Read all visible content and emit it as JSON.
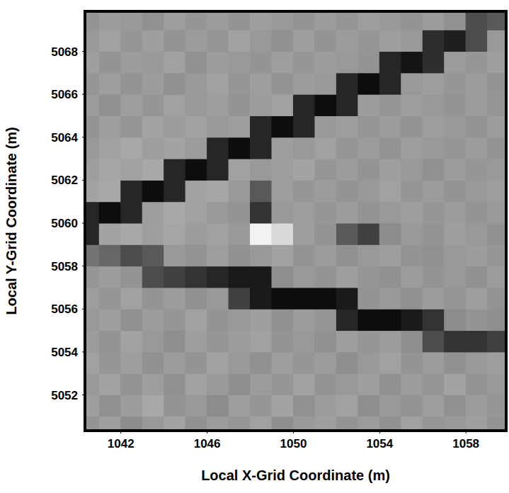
{
  "chart_data": {
    "type": "heatmap",
    "x_label": "Local X-Grid Coordinate (m)",
    "y_label": "Local Y-Grid Coordinate (m)",
    "xlim": [
      1040.4,
      1059.8
    ],
    "ylim": [
      5050.4,
      5069.8
    ],
    "xticks": [
      1042,
      1046,
      1050,
      1054,
      1058
    ],
    "yticks": [
      5052,
      5054,
      5056,
      5058,
      5060,
      5062,
      5064,
      5066,
      5068
    ],
    "zlim": [
      0,
      100
    ],
    "cells": {
      "x": [
        1040.5,
        1041.5,
        1042.5,
        1043.5,
        1044.5,
        1045.5,
        1046.5,
        1047.5,
        1048.5,
        1049.5,
        1050.5,
        1051.5,
        1052.5,
        1053.5,
        1054.5,
        1055.5,
        1056.5,
        1057.5,
        1058.5,
        1059.5
      ],
      "y": [
        5050.5,
        5051.5,
        5052.5,
        5053.5,
        5054.5,
        5055.5,
        5056.5,
        5057.5,
        5058.5,
        5059.5,
        5060.5,
        5061.5,
        5062.5,
        5063.5,
        5064.5,
        5065.5,
        5066.5,
        5067.5,
        5068.5,
        5069.5
      ],
      "z": [
        [
          58,
          62,
          55,
          60,
          64,
          57,
          61,
          59,
          63,
          56,
          60,
          62,
          58,
          61,
          57,
          63,
          59,
          60,
          62,
          58
        ],
        [
          62,
          57,
          61,
          66,
          58,
          60,
          55,
          62,
          59,
          64,
          57,
          61,
          63,
          56,
          60,
          58,
          62,
          57,
          61,
          59
        ],
        [
          60,
          64,
          58,
          62,
          57,
          63,
          60,
          56,
          61,
          59,
          63,
          58,
          60,
          62,
          57,
          61,
          59,
          64,
          58,
          60
        ],
        [
          63,
          59,
          62,
          57,
          61,
          58,
          64,
          60,
          57,
          62,
          59,
          61,
          56,
          60,
          63,
          58,
          61,
          57,
          60,
          62
        ],
        [
          61,
          58,
          64,
          60,
          56,
          62,
          59,
          61,
          63,
          58,
          60,
          57,
          62,
          59,
          61,
          56,
          30,
          20,
          20,
          25
        ],
        [
          60,
          62,
          57,
          61,
          59,
          63,
          58,
          60,
          62,
          57,
          61,
          59,
          15,
          5,
          5,
          10,
          20,
          55,
          58,
          56
        ],
        [
          62,
          59,
          63,
          58,
          61,
          57,
          60,
          25,
          10,
          5,
          5,
          5,
          10,
          58,
          60,
          57,
          61,
          59,
          62,
          58
        ],
        [
          59,
          61,
          58,
          30,
          25,
          20,
          15,
          10,
          10,
          56,
          60,
          58,
          62,
          59,
          57,
          61,
          58,
          60,
          57,
          61
        ],
        [
          45,
          40,
          30,
          35,
          60,
          58,
          62,
          57,
          60,
          63,
          58,
          61,
          57,
          60,
          62,
          58,
          57,
          60,
          61,
          59
        ],
        [
          15,
          64,
          66,
          62,
          65,
          61,
          63,
          60,
          95,
          85,
          62,
          58,
          35,
          25,
          55,
          60,
          58,
          62,
          60,
          57
        ],
        [
          15,
          5,
          15,
          62,
          66,
          63,
          60,
          58,
          20,
          60,
          62,
          59,
          61,
          58,
          60,
          62,
          59,
          61,
          58,
          60
        ],
        [
          64,
          66,
          15,
          5,
          15,
          63,
          65,
          60,
          35,
          62,
          59,
          61,
          58,
          60,
          63,
          59,
          61,
          58,
          60,
          62
        ],
        [
          62,
          65,
          63,
          66,
          15,
          5,
          15,
          63,
          60,
          62,
          64,
          59,
          61,
          58,
          62,
          60,
          57,
          61,
          59,
          60
        ],
        [
          60,
          63,
          66,
          62,
          64,
          61,
          15,
          5,
          15,
          62,
          60,
          63,
          59,
          61,
          58,
          62,
          60,
          59,
          61,
          58
        ],
        [
          58,
          62,
          59,
          64,
          61,
          63,
          60,
          62,
          15,
          5,
          15,
          60,
          62,
          59,
          61,
          58,
          62,
          60,
          58,
          61
        ],
        [
          61,
          57,
          62,
          59,
          63,
          60,
          62,
          58,
          61,
          63,
          15,
          5,
          15,
          61,
          59,
          62,
          60,
          58,
          61,
          59
        ],
        [
          59,
          62,
          58,
          61,
          57,
          60,
          63,
          59,
          62,
          58,
          61,
          60,
          15,
          5,
          15,
          60,
          62,
          59,
          61,
          58
        ],
        [
          62,
          58,
          61,
          60,
          63,
          57,
          61,
          60,
          58,
          62,
          59,
          61,
          60,
          58,
          15,
          8,
          18,
          61,
          59,
          62
        ],
        [
          60,
          63,
          59,
          62,
          58,
          61,
          59,
          63,
          60,
          57,
          62,
          58,
          61,
          59,
          62,
          60,
          18,
          12,
          30,
          60
        ],
        [
          58,
          61,
          60,
          57,
          62,
          59,
          61,
          58,
          62,
          60,
          58,
          61,
          59,
          62,
          60,
          58,
          61,
          57,
          30,
          35
        ]
      ]
    }
  }
}
